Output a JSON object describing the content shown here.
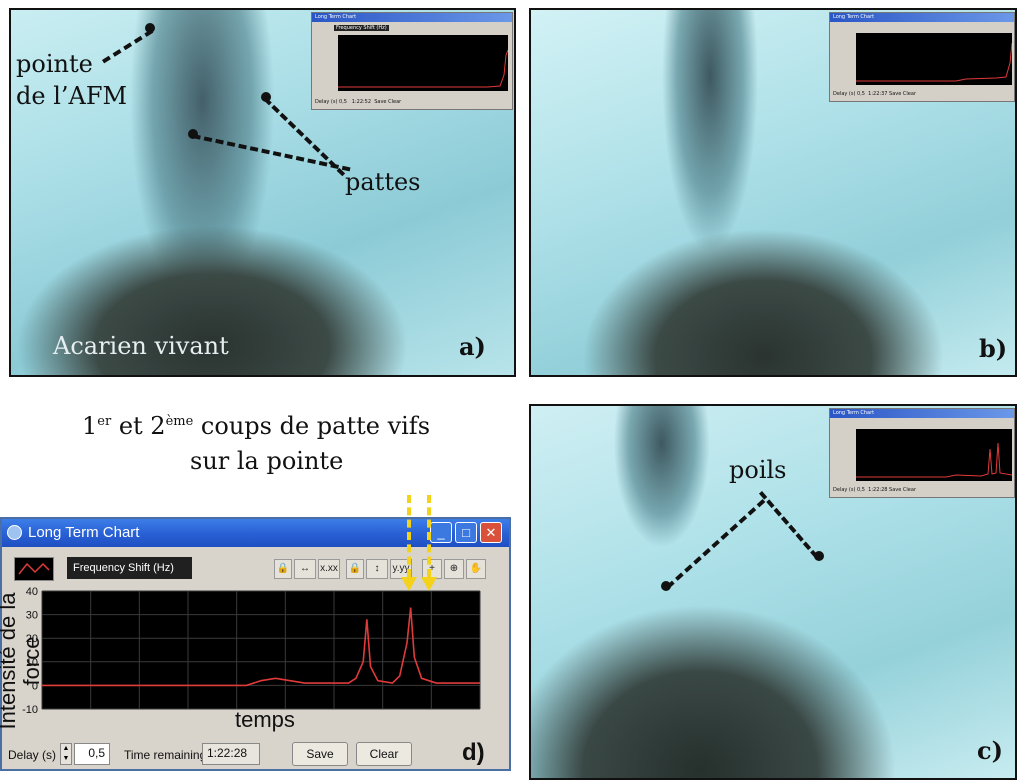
{
  "panel_a": {
    "label_tip": "pointe",
    "label_tip2": "de l’AFM",
    "label_legs": "pattes",
    "caption": "Acarien vivant",
    "letter": "a)"
  },
  "panel_b": {
    "letter": "b)"
  },
  "panel_c": {
    "label_hairs": "poils",
    "letter": "c)"
  },
  "panel_d": {
    "caption_sup1": "er",
    "caption_sup2": "ème",
    "caption_line1_a": "1",
    "caption_line1_b": " et 2",
    "caption_line1_c": " coups de patte vifs",
    "caption_line2": "sur la pointe",
    "letter": "d)",
    "window_title": "Long Term Chart",
    "channel": "Frequency Shift (Hz)",
    "ylabel_overlay": "Intensité de la force",
    "xlabel_overlay": "temps",
    "delay_label": "Delay (s)",
    "delay_value": "0,5",
    "time_remaining_label": "Time remaining",
    "time_remaining_value": "1:22:28",
    "save_label": "Save",
    "clear_label": "Clear"
  },
  "mini_chart": {
    "title": "Long Term Chart",
    "channel": "Frequency Shift (Hz)",
    "save": "Save",
    "clear": "Clear",
    "delay": "Delay (s)",
    "delay_value": "0,5",
    "time_a": "1:22:52",
    "time_b": "1:22:37",
    "time_c": "1:22:28"
  },
  "chart_data": {
    "type": "line",
    "ylim": [
      -10,
      40
    ],
    "yticks": [
      -10,
      0,
      10,
      20,
      30,
      40
    ],
    "x": [
      0,
      2,
      4,
      6,
      8,
      10,
      12,
      14,
      16,
      18,
      20,
      22,
      24,
      26,
      28,
      30,
      32,
      34,
      36,
      38,
      40,
      42,
      43,
      44,
      44.5,
      45,
      46,
      48,
      49,
      50,
      50.5,
      51,
      52,
      54,
      56,
      58,
      60
    ],
    "series": [
      {
        "values": [
          0,
          0,
          0,
          0,
          0,
          0,
          0,
          0,
          0,
          0,
          0,
          0,
          0,
          0,
          0,
          2,
          3,
          2,
          1,
          1,
          1,
          1,
          3,
          10,
          28,
          8,
          2,
          1,
          4,
          18,
          33,
          12,
          3,
          1,
          1,
          1,
          1
        ]
      }
    ],
    "color": "#e03a3a"
  }
}
